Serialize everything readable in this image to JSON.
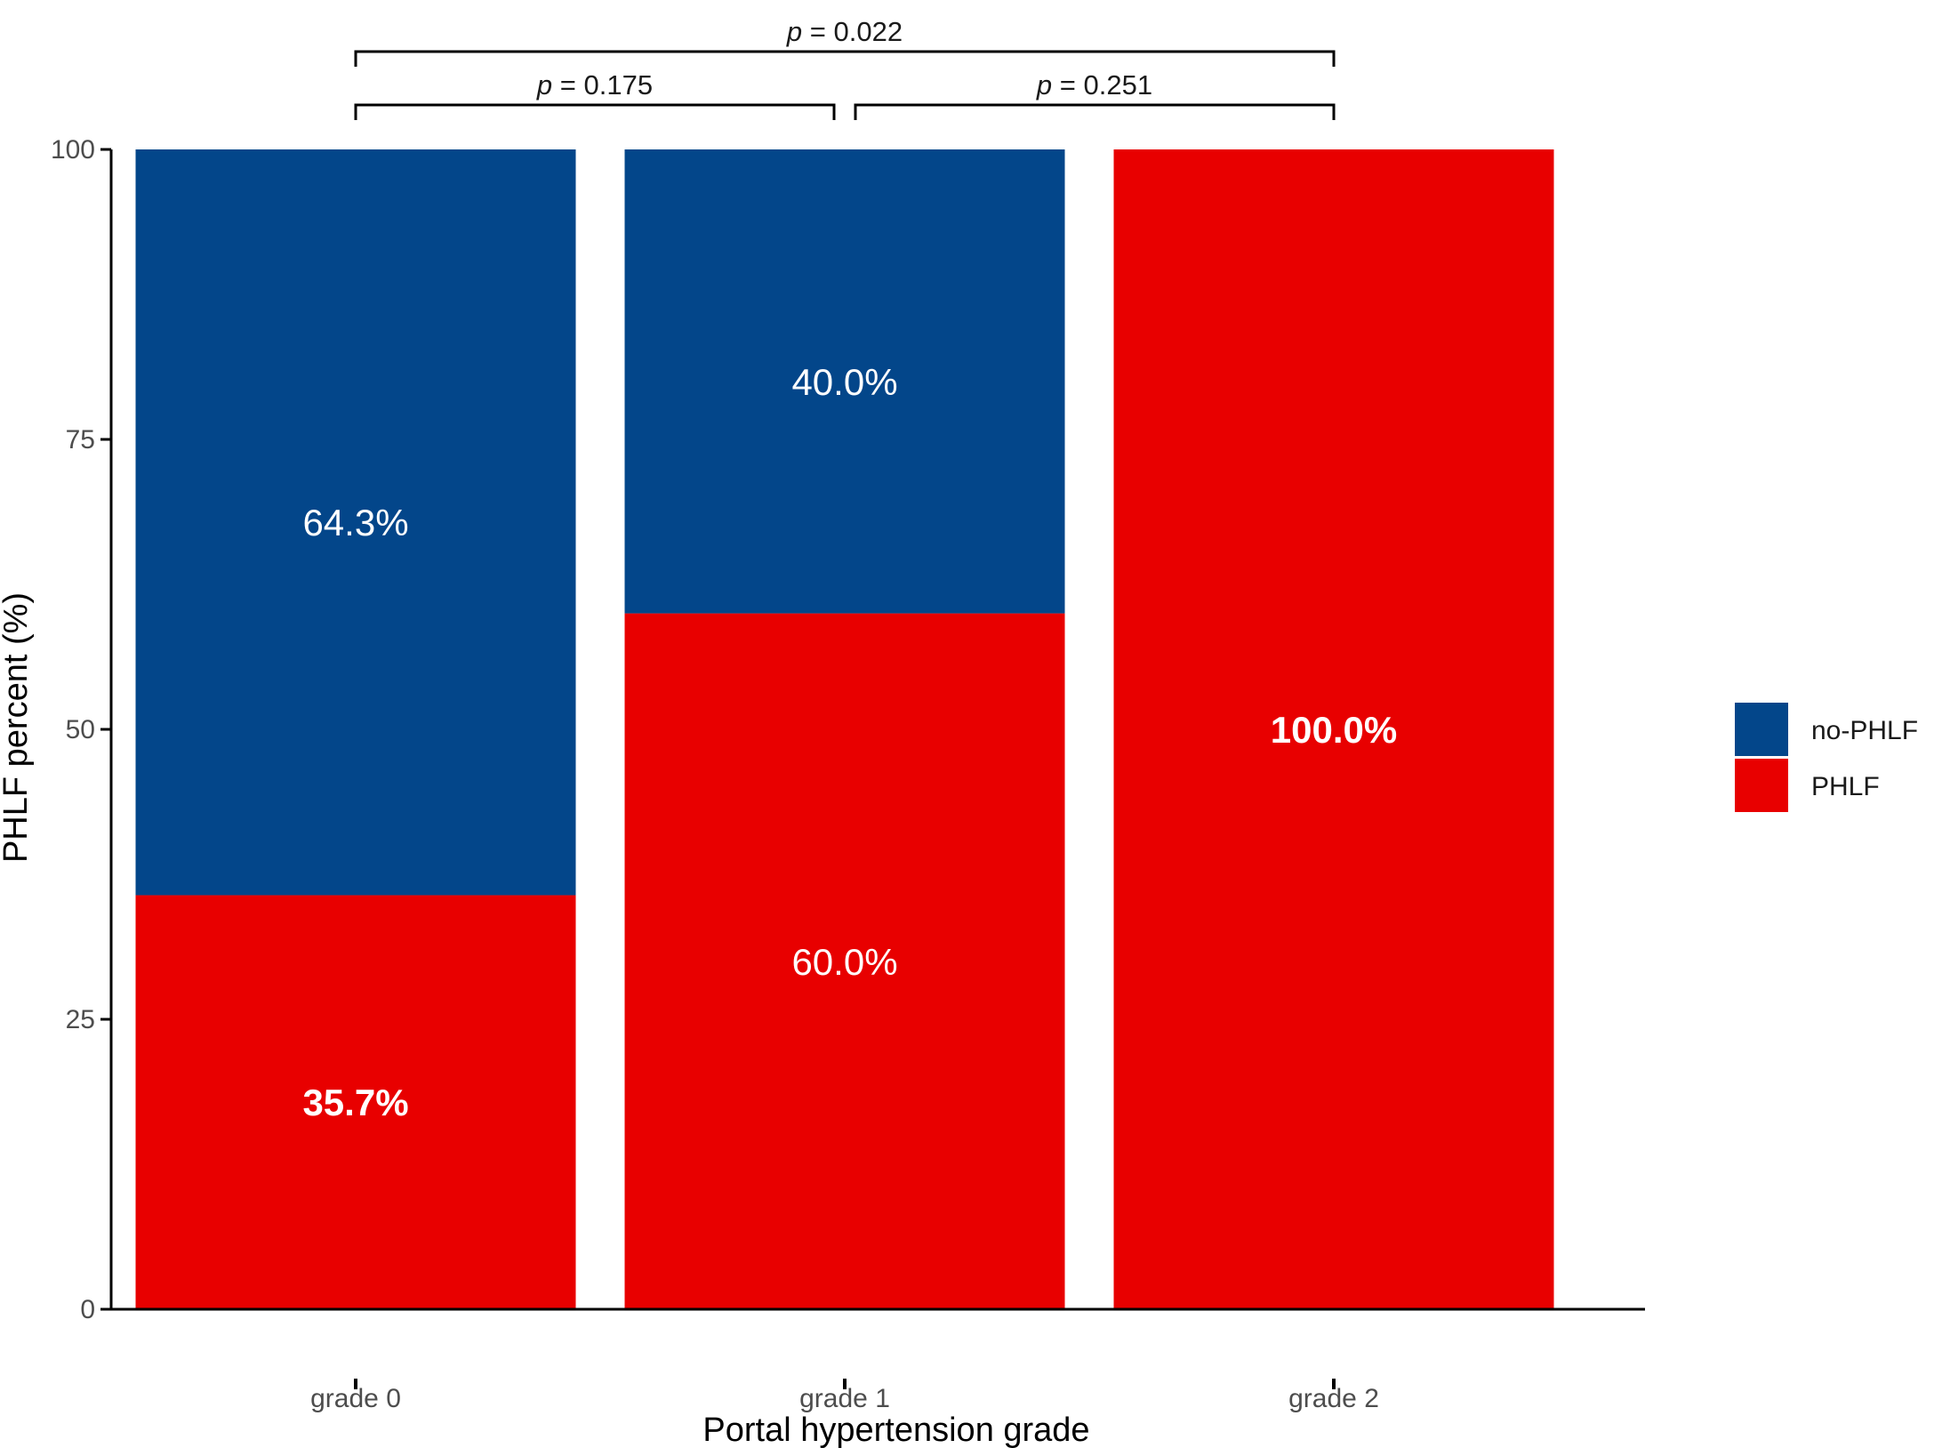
{
  "chart_data": {
    "type": "bar",
    "stacked": true,
    "categories": [
      "grade 0",
      "grade 1",
      "grade 2"
    ],
    "series": [
      {
        "name": "PHLF",
        "color": "#e80000",
        "values": [
          35.7,
          60.0,
          100.0
        ],
        "labels": [
          "35.7%",
          "60.0%",
          "100.0%"
        ],
        "bold": [
          true,
          false,
          true
        ]
      },
      {
        "name": "no-PHLF",
        "color": "#03468a",
        "values": [
          64.3,
          40.0,
          0.0
        ],
        "labels": [
          "64.3%",
          "40.0%",
          ""
        ],
        "bold": [
          false,
          false,
          false
        ]
      }
    ],
    "xlabel": "Portal hypertension grade",
    "ylabel": "PHLF percent  (%)",
    "ylim": [
      0,
      100
    ],
    "yticks": [
      0,
      25,
      50,
      75,
      100
    ],
    "legend": {
      "position": "right",
      "entries": [
        {
          "name": "no-PHLF",
          "color": "#03468a"
        },
        {
          "name": "PHLF",
          "color": "#e80000"
        }
      ]
    },
    "grid": false,
    "annotations": [
      {
        "from": "grade 0",
        "to": "grade 1",
        "p_symbol": "p",
        "text": " = 0.175",
        "level": 0
      },
      {
        "from": "grade 1",
        "to": "grade 2",
        "p_symbol": "p",
        "text": " = 0.251",
        "level": 0
      },
      {
        "from": "grade 0",
        "to": "grade 2",
        "p_symbol": "p",
        "text": " = 0.022",
        "level": 1
      }
    ]
  }
}
